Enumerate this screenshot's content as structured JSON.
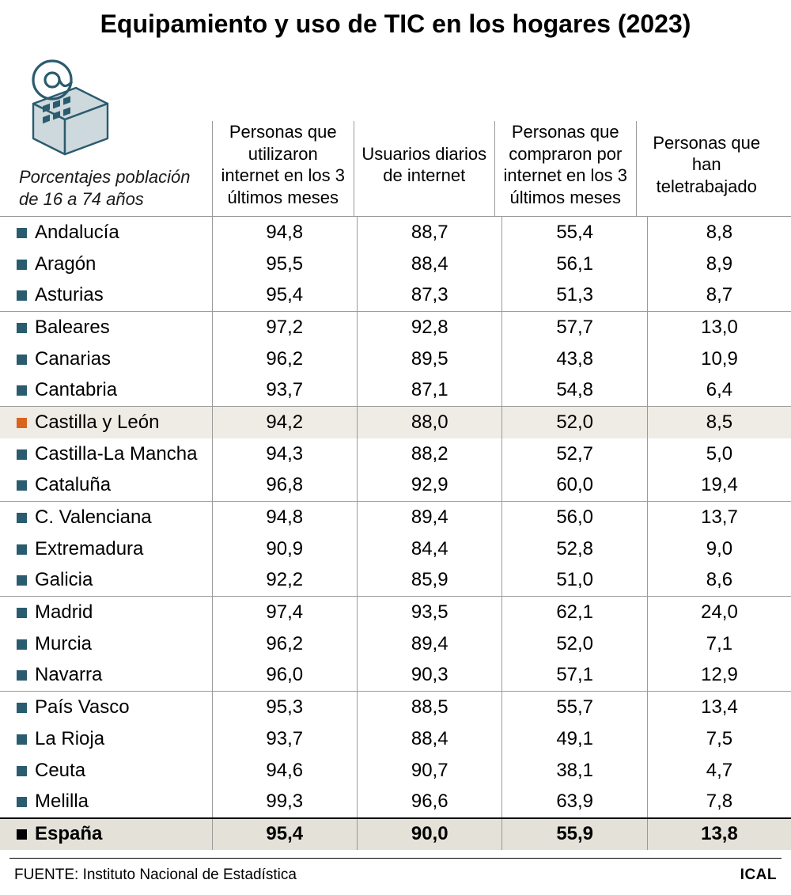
{
  "title": "Equipamiento y uso de TIC en los hogares (2023)",
  "subtitle_l1": "Porcentajes población",
  "subtitle_l2": "de 16 a 74 años",
  "columns": [
    "Personas que utilizaron internet en los 3 últimos meses",
    "Usuarios diarios de internet",
    "Personas que compraron por internet en los 3 últimos meses",
    "Personas que han teletrabajado"
  ],
  "marker_color_default": "#2b5b6e",
  "marker_color_highlight": "#d9641f",
  "marker_color_total": "#000000",
  "highlight_bg": "#eeece4",
  "total_bg": "#e3e1d8",
  "icon_fill": "#cdd9dd",
  "icon_stroke": "#2b5b6e",
  "rows": [
    {
      "label": "Andalucía",
      "v": [
        "94,8",
        "88,7",
        "55,4",
        "8,8"
      ],
      "sep": true
    },
    {
      "label": "Aragón",
      "v": [
        "95,5",
        "88,4",
        "56,1",
        "8,9"
      ],
      "sep": false
    },
    {
      "label": "Asturias",
      "v": [
        "95,4",
        "87,3",
        "51,3",
        "8,7"
      ],
      "sep": false
    },
    {
      "label": "Baleares",
      "v": [
        "97,2",
        "92,8",
        "57,7",
        "13,0"
      ],
      "sep": true
    },
    {
      "label": "Canarias",
      "v": [
        "96,2",
        "89,5",
        "43,8",
        "10,9"
      ],
      "sep": false
    },
    {
      "label": "Cantabria",
      "v": [
        "93,7",
        "87,1",
        "54,8",
        "6,4"
      ],
      "sep": false
    },
    {
      "label": "Castilla y León",
      "v": [
        "94,2",
        "88,0",
        "52,0",
        "8,5"
      ],
      "sep": true,
      "highlight": true
    },
    {
      "label": "Castilla-La Mancha",
      "v": [
        "94,3",
        "88,2",
        "52,7",
        "5,0"
      ],
      "sep": false
    },
    {
      "label": "Cataluña",
      "v": [
        "96,8",
        "92,9",
        "60,0",
        "19,4"
      ],
      "sep": false
    },
    {
      "label": "C. Valenciana",
      "v": [
        "94,8",
        "89,4",
        "56,0",
        "13,7"
      ],
      "sep": true
    },
    {
      "label": "Extremadura",
      "v": [
        "90,9",
        "84,4",
        "52,8",
        "9,0"
      ],
      "sep": false
    },
    {
      "label": "Galicia",
      "v": [
        "92,2",
        "85,9",
        "51,0",
        "8,6"
      ],
      "sep": false
    },
    {
      "label": "Madrid",
      "v": [
        "97,4",
        "93,5",
        "62,1",
        "24,0"
      ],
      "sep": true
    },
    {
      "label": "Murcia",
      "v": [
        "96,2",
        "89,4",
        "52,0",
        "7,1"
      ],
      "sep": false
    },
    {
      "label": "Navarra",
      "v": [
        "96,0",
        "90,3",
        "57,1",
        "12,9"
      ],
      "sep": false
    },
    {
      "label": "País Vasco",
      "v": [
        "95,3",
        "88,5",
        "55,7",
        "13,4"
      ],
      "sep": true
    },
    {
      "label": "La Rioja",
      "v": [
        "93,7",
        "88,4",
        "49,1",
        "7,5"
      ],
      "sep": false
    },
    {
      "label": "Ceuta",
      "v": [
        "94,6",
        "90,7",
        "38,1",
        "4,7"
      ],
      "sep": false
    },
    {
      "label": "Melilla",
      "v": [
        "99,3",
        "96,6",
        "63,9",
        "7,8"
      ],
      "sep": false
    }
  ],
  "total": {
    "label": "España",
    "v": [
      "95,4",
      "90,0",
      "55,9",
      "13,8"
    ]
  },
  "footer_source_label": "FUENTE:",
  "footer_source": "Instituto Nacional de Estadística",
  "footer_credit": "ICAL"
}
